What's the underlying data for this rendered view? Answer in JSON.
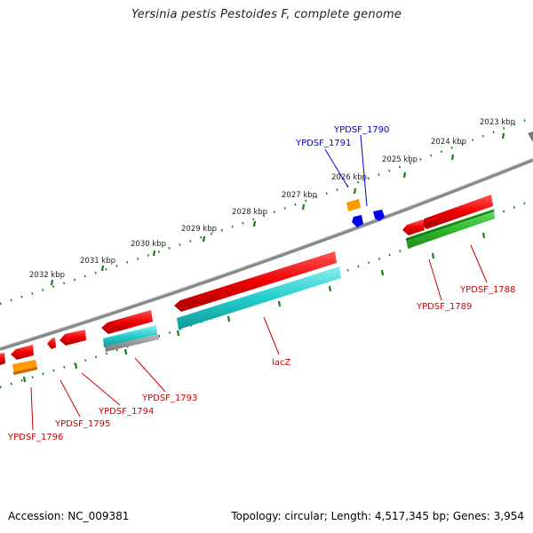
{
  "title": "Yersinia pestis Pestoides F, complete genome",
  "accession": "Accession: NC_009381",
  "stats": "Topology: circular; Length: 4,517,345 bp; Genes: 3,954",
  "colors": {
    "backbone": "#8a8a8a",
    "tick": "#1a7a1a",
    "forward_label": "#0000cc",
    "reverse_label": "#cc0000",
    "cds": "#ee0000",
    "gene_teal": "#33cccc",
    "gene_green": "#33bb33",
    "gene_orange": "#ff9900",
    "gene_blue": "#0000ee"
  },
  "ticks": [
    {
      "label": "2023 kbp"
    },
    {
      "label": "2024 kbp"
    },
    {
      "label": "2025 kbp"
    },
    {
      "label": "2026 kbp"
    },
    {
      "label": "2027 kbp"
    },
    {
      "label": "2028 kbp"
    },
    {
      "label": "2029 kbp"
    },
    {
      "label": "2030 kbp"
    },
    {
      "label": "2031 kbp"
    },
    {
      "label": "2032 kbp"
    }
  ],
  "labels": {
    "ypdsf_1790": "YPDSF_1790",
    "ypdsf_1791": "YPDSF_1791",
    "ypdsf_1788": "YPDSF_1788",
    "ypdsf_1789": "YPDSF_1789",
    "lacz": "lacZ",
    "ypdsf_1793": "YPDSF_1793",
    "ypdsf_1794": "YPDSF_1794",
    "ypdsf_1795": "YPDSF_1795",
    "ypdsf_1796": "YPDSF_1796"
  }
}
